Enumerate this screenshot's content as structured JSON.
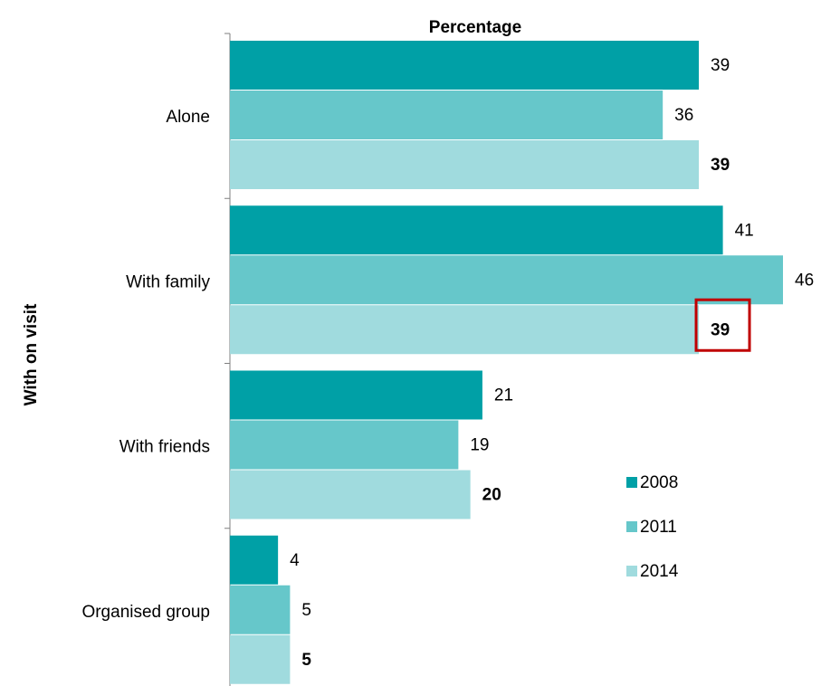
{
  "chart_data": {
    "type": "bar",
    "orientation": "horizontal",
    "title": "Percentage",
    "xlabel": "",
    "ylabel": "With on visit",
    "xlim": [
      0,
      46
    ],
    "categories": [
      "Alone",
      "With family",
      "With friends",
      "Organised group"
    ],
    "series": [
      {
        "name": "2008",
        "color": "#00A0A6",
        "values": [
          39,
          41,
          21,
          4
        ],
        "bold_labels": false
      },
      {
        "name": "2011",
        "color": "#66C7CA",
        "values": [
          36,
          46,
          19,
          5
        ],
        "bold_labels": false
      },
      {
        "name": "2014",
        "color": "#A0DBDE",
        "values": [
          39,
          39,
          20,
          5
        ],
        "bold_labels": true
      }
    ],
    "highlight": {
      "category": "With family",
      "series": "2014",
      "outline_color": "#C00000"
    },
    "legend_position": "bottom-right",
    "grid": false
  }
}
